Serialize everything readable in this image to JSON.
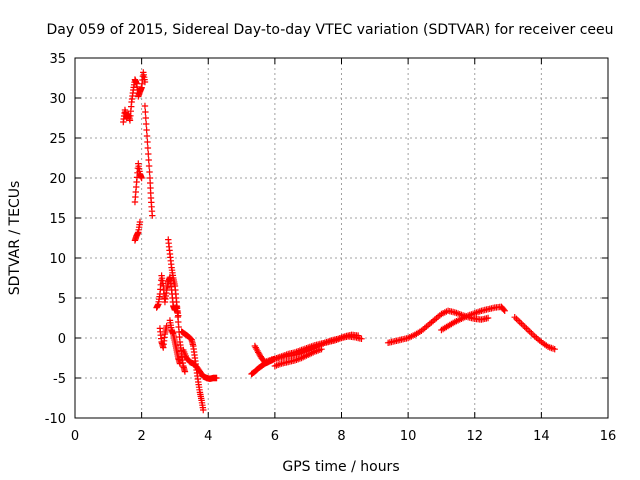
{
  "chart_data": {
    "type": "scatter",
    "title": "Day 059 of 2015, Sidereal Day-to-day VTEC variation (SDTVAR) for receiver ceeu",
    "xlabel": "GPS time / hours",
    "ylabel": "SDTVAR / TECUs",
    "xlim": [
      0,
      16
    ],
    "ylim": [
      -10,
      35
    ],
    "x_ticks": [
      0,
      2,
      4,
      6,
      8,
      10,
      12,
      14,
      16
    ],
    "y_ticks": [
      -10,
      -5,
      0,
      5,
      10,
      15,
      20,
      25,
      30,
      35
    ],
    "grid": true,
    "marker": "+",
    "color": "#ff0000",
    "series": [
      {
        "name": "SDTVAR",
        "segments": [
          [
            [
              1.45,
              27.0
            ],
            [
              1.5,
              28.5
            ],
            [
              1.55,
              27.5
            ],
            [
              1.6,
              28.0
            ],
            [
              1.65,
              27.2
            ],
            [
              1.7,
              29.5
            ],
            [
              1.75,
              31.0
            ],
            [
              1.8,
              32.3
            ],
            [
              1.85,
              31.8
            ],
            [
              1.9,
              30.2
            ],
            [
              1.95,
              30.8
            ],
            [
              2.0,
              31.3
            ],
            [
              2.05,
              33.2
            ],
            [
              2.1,
              32.0
            ]
          ],
          [
            [
              1.8,
              17.0
            ],
            [
              1.85,
              19.5
            ],
            [
              1.9,
              21.8
            ],
            [
              1.95,
              20.5
            ],
            [
              2.0,
              20.0
            ]
          ],
          [
            [
              1.8,
              12.2
            ],
            [
              1.85,
              12.8
            ],
            [
              1.9,
              13.2
            ],
            [
              1.95,
              14.5
            ]
          ],
          [
            [
              2.1,
              29.0
            ],
            [
              2.15,
              26.0
            ],
            [
              2.2,
              23.0
            ],
            [
              2.25,
              20.0
            ],
            [
              2.28,
              17.5
            ],
            [
              2.32,
              15.3
            ]
          ],
          [
            [
              2.45,
              3.8
            ],
            [
              2.5,
              4.2
            ],
            [
              2.55,
              5.5
            ],
            [
              2.6,
              7.8
            ],
            [
              2.65,
              6.5
            ],
            [
              2.7,
              4.5
            ],
            [
              2.75,
              6.0
            ],
            [
              2.8,
              7.0
            ],
            [
              2.85,
              7.6
            ],
            [
              2.9,
              6.0
            ],
            [
              2.95,
              4.0
            ],
            [
              3.0,
              3.5
            ],
            [
              3.05,
              4.0
            ],
            [
              3.1,
              2.8
            ]
          ],
          [
            [
              2.55,
              1.2
            ],
            [
              2.6,
              -0.5
            ],
            [
              2.65,
              -1.2
            ],
            [
              2.7,
              0.5
            ],
            [
              2.75,
              1.5
            ]
          ],
          [
            [
              2.8,
              12.3
            ],
            [
              2.85,
              10.5
            ],
            [
              2.9,
              8.8
            ],
            [
              2.95,
              7.5
            ],
            [
              3.0,
              6.5
            ],
            [
              3.05,
              4.5
            ],
            [
              3.1,
              2.0
            ],
            [
              3.15,
              -0.5
            ],
            [
              3.2,
              -2.0
            ],
            [
              3.25,
              -3.5
            ],
            [
              3.3,
              -4.2
            ]
          ],
          [
            [
              2.85,
              2.2
            ],
            [
              2.9,
              1.0
            ],
            [
              2.95,
              0.5
            ],
            [
              3.0,
              -0.5
            ],
            [
              3.05,
              -1.5
            ],
            [
              3.1,
              -2.5
            ],
            [
              3.15,
              -3.2
            ]
          ],
          [
            [
              3.2,
              0.8
            ],
            [
              3.3,
              0.5
            ],
            [
              3.4,
              0.2
            ],
            [
              3.5,
              -0.2
            ],
            [
              3.55,
              -1.0
            ],
            [
              3.6,
              -2.5
            ],
            [
              3.65,
              -4.0
            ],
            [
              3.7,
              -5.5
            ],
            [
              3.75,
              -6.8
            ],
            [
              3.8,
              -7.8
            ],
            [
              3.85,
              -9.0
            ]
          ],
          [
            [
              3.25,
              -1.5
            ],
            [
              3.35,
              -2.5
            ],
            [
              3.45,
              -3.0
            ],
            [
              3.55,
              -3.2
            ],
            [
              3.65,
              -3.6
            ],
            [
              3.75,
              -4.2
            ],
            [
              3.85,
              -4.8
            ],
            [
              3.95,
              -5.0
            ],
            [
              4.05,
              -5.1
            ],
            [
              4.15,
              -5.0
            ],
            [
              4.25,
              -5.0
            ]
          ],
          [
            [
              5.3,
              -4.5
            ],
            [
              5.4,
              -4.2
            ],
            [
              5.5,
              -3.8
            ],
            [
              5.6,
              -3.5
            ],
            [
              5.7,
              -3.2
            ],
            [
              5.8,
              -3.0
            ],
            [
              5.9,
              -2.8
            ],
            [
              6.0,
              -2.6
            ],
            [
              6.2,
              -2.3
            ],
            [
              6.4,
              -2.0
            ],
            [
              6.6,
              -1.8
            ],
            [
              6.8,
              -1.5
            ],
            [
              7.0,
              -1.2
            ],
            [
              7.2,
              -0.9
            ],
            [
              7.4,
              -0.7
            ],
            [
              7.6,
              -0.5
            ],
            [
              7.8,
              -0.3
            ],
            [
              8.0,
              0.0
            ],
            [
              8.2,
              0.2
            ],
            [
              8.4,
              0.1
            ],
            [
              8.6,
              -0.1
            ]
          ],
          [
            [
              5.4,
              -1.0
            ],
            [
              5.5,
              -1.8
            ],
            [
              5.6,
              -2.5
            ],
            [
              5.7,
              -3.0
            ],
            [
              5.9,
              -2.7
            ],
            [
              6.1,
              -2.5
            ],
            [
              6.3,
              -2.3
            ],
            [
              6.5,
              -2.2
            ],
            [
              6.7,
              -2.0
            ],
            [
              6.9,
              -1.7
            ],
            [
              7.1,
              -1.4
            ],
            [
              7.3,
              -1.0
            ],
            [
              7.5,
              -0.6
            ],
            [
              7.7,
              -0.3
            ],
            [
              7.9,
              -0.1
            ],
            [
              8.1,
              0.2
            ],
            [
              8.3,
              0.4
            ],
            [
              8.5,
              0.3
            ]
          ],
          [
            [
              6.0,
              -3.5
            ],
            [
              6.2,
              -3.2
            ],
            [
              6.4,
              -3.0
            ],
            [
              6.6,
              -2.8
            ],
            [
              6.8,
              -2.5
            ],
            [
              7.0,
              -2.1
            ],
            [
              7.2,
              -1.7
            ],
            [
              7.4,
              -1.4
            ]
          ],
          [
            [
              9.4,
              -0.6
            ],
            [
              9.6,
              -0.4
            ],
            [
              9.8,
              -0.2
            ],
            [
              10.0,
              0.0
            ],
            [
              10.2,
              0.4
            ],
            [
              10.4,
              0.9
            ],
            [
              10.6,
              1.6
            ],
            [
              10.8,
              2.3
            ],
            [
              11.0,
              3.0
            ],
            [
              11.2,
              3.4
            ],
            [
              11.4,
              3.2
            ],
            [
              11.6,
              2.9
            ],
            [
              11.8,
              2.6
            ],
            [
              12.0,
              2.4
            ],
            [
              12.2,
              2.3
            ],
            [
              12.4,
              2.5
            ]
          ],
          [
            [
              11.0,
              1.0
            ],
            [
              11.2,
              1.5
            ],
            [
              11.4,
              2.0
            ],
            [
              11.6,
              2.4
            ],
            [
              11.8,
              2.8
            ],
            [
              12.0,
              3.1
            ],
            [
              12.2,
              3.4
            ],
            [
              12.4,
              3.6
            ],
            [
              12.6,
              3.8
            ],
            [
              12.8,
              3.9
            ],
            [
              12.9,
              3.4
            ]
          ],
          [
            [
              13.2,
              2.6
            ],
            [
              13.4,
              1.8
            ],
            [
              13.6,
              1.0
            ],
            [
              13.8,
              0.2
            ],
            [
              14.0,
              -0.5
            ],
            [
              14.2,
              -1.1
            ],
            [
              14.4,
              -1.4
            ]
          ]
        ]
      }
    ]
  }
}
